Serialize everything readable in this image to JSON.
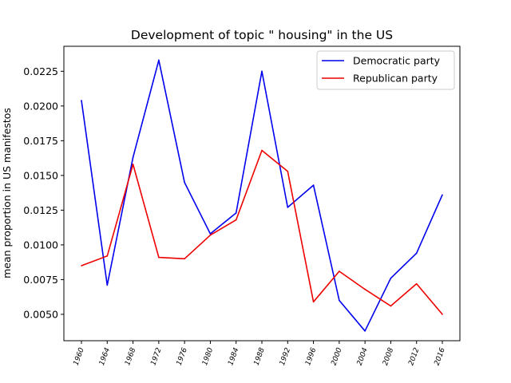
{
  "chart_data": {
    "type": "line",
    "title": "Development of topic \" housing\" in the US",
    "xlabel": "",
    "ylabel": "mean proportion in US manifestos",
    "x": [
      "1960",
      "1964",
      "1968",
      "1972",
      "1976",
      "1980",
      "1984",
      "1988",
      "1992",
      "1996",
      "2000",
      "2004",
      "2008",
      "2012",
      "2016"
    ],
    "ylim": [
      0.0031,
      0.0243
    ],
    "yticks": [
      "0.0050",
      "0.0075",
      "0.0100",
      "0.0125",
      "0.0150",
      "0.0175",
      "0.0200",
      "0.0225"
    ],
    "legend_position": "top-right",
    "grid": false,
    "series": [
      {
        "name": "Democratic party",
        "color": "#0000ee",
        "values": [
          0.0204,
          0.0071,
          0.0163,
          0.0233,
          0.0145,
          0.0108,
          0.0123,
          0.0225,
          0.0127,
          0.0143,
          0.006,
          0.0038,
          0.0076,
          0.0094,
          0.0136
        ]
      },
      {
        "name": "Republican party",
        "color": "#ee0000",
        "values": [
          0.0085,
          0.0092,
          0.0158,
          0.0091,
          0.009,
          0.0107,
          0.0118,
          0.0168,
          0.0153,
          0.0059,
          0.0081,
          0.0068,
          0.0056,
          0.0072,
          0.005
        ]
      }
    ]
  }
}
